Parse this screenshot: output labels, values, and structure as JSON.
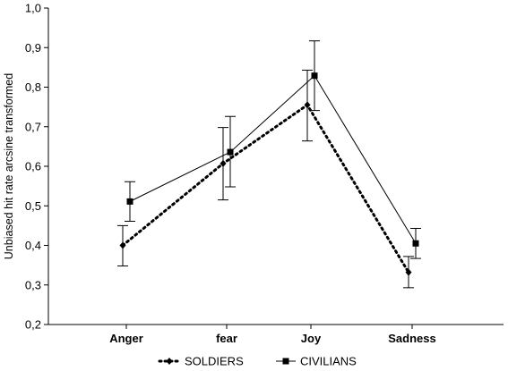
{
  "chart_data": {
    "type": "line",
    "ylabel": "Unbiased hit rate arcsine transformed",
    "xlabel": "",
    "categories": [
      "Anger",
      "fear",
      "Joy",
      "Sadness"
    ],
    "ylim": [
      0.2,
      1.0
    ],
    "yticks": [
      "0,2",
      "0,3",
      "0,4",
      "0,5",
      "0,6",
      "0,7",
      "0,8",
      "0,9",
      "1,0"
    ],
    "grid": false,
    "legend_position": "bottom",
    "series": [
      {
        "name": "SOLDIERS",
        "marker": "diamond",
        "line_style": "dotted",
        "color": "#000000",
        "values": [
          0.4,
          0.607,
          0.755,
          0.332
        ],
        "err_low": [
          0.348,
          0.515,
          0.664,
          0.293
        ],
        "err_high": [
          0.45,
          0.698,
          0.843,
          0.372
        ]
      },
      {
        "name": "CIVILIANS",
        "marker": "square",
        "line_style": "solid",
        "color": "#000000",
        "values": [
          0.511,
          0.636,
          0.829,
          0.405
        ],
        "err_low": [
          0.461,
          0.548,
          0.741,
          0.367
        ],
        "err_high": [
          0.561,
          0.726,
          0.917,
          0.443
        ]
      }
    ]
  }
}
